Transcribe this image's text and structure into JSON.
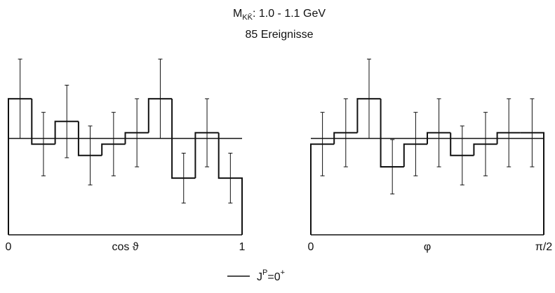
{
  "title_parts": [
    "M",
    "KK̄",
    ": 1.0 - 1.1 GeV"
  ],
  "subtitle": "85 Ereignisse",
  "legend_parts": [
    "J",
    "P",
    "=0",
    "+"
  ],
  "chart_data": [
    {
      "type": "histogram",
      "xlabel": "cos ϑ",
      "bins": [
        0,
        0.1,
        0.2,
        0.3,
        0.4,
        0.5,
        0.6,
        0.7,
        0.8,
        0.9,
        1
      ],
      "values": [
        12,
        8,
        10,
        7,
        8,
        9,
        12,
        5,
        9,
        5
      ],
      "errors": [
        3.5,
        2.8,
        3.2,
        2.6,
        2.8,
        3,
        3.5,
        2.2,
        3,
        2.2
      ],
      "fit": 8.5,
      "xlim": [
        0,
        1
      ],
      "xticks": [
        0,
        1
      ],
      "ylim": [
        0,
        17
      ]
    },
    {
      "type": "histogram",
      "xlabel": "φ",
      "bins": [
        0,
        0.1571,
        0.3142,
        0.4712,
        0.6283,
        0.7854,
        0.9425,
        1.0996,
        1.2566,
        1.4137,
        1.5708
      ],
      "values": [
        8,
        9,
        12,
        6,
        8,
        9,
        7,
        8,
        9,
        9
      ],
      "errors": [
        2.8,
        3,
        3.5,
        2.4,
        2.8,
        3,
        2.6,
        2.8,
        3,
        3
      ],
      "fit": 8.5,
      "xlim": [
        0,
        1.5708
      ],
      "xticks": [
        0,
        {
          "value": 1.5708,
          "label": "π/2"
        }
      ],
      "ylim": [
        0,
        17
      ]
    }
  ]
}
